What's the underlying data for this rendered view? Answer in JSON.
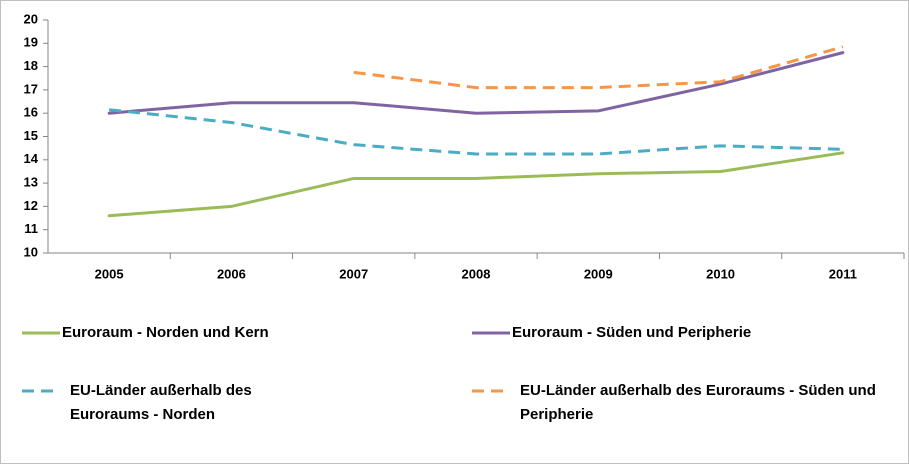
{
  "chart_data": {
    "type": "line",
    "categories": [
      "2005",
      "2006",
      "2007",
      "2008",
      "2009",
      "2010",
      "2011"
    ],
    "series": [
      {
        "name": "Euroraum - Norden und Kern",
        "color": "#9bbb59",
        "dash": false,
        "values": [
          11.6,
          12.0,
          13.2,
          13.2,
          13.4,
          13.5,
          14.3
        ]
      },
      {
        "name": "Euroraum - Süden und Peripherie",
        "color": "#8064a2",
        "dash": false,
        "values": [
          16.0,
          16.45,
          16.45,
          16.0,
          16.1,
          17.25,
          18.6
        ]
      },
      {
        "name": "EU-Länder außerhalb des Euroraums - Norden",
        "color": "#4bacc6",
        "dash": true,
        "values": [
          16.15,
          15.6,
          14.65,
          14.25,
          14.25,
          14.6,
          14.45
        ]
      },
      {
        "name": "EU-Länder außerhalb des Euroraums - Süden und Peripherie",
        "color": "#f79646",
        "dash": true,
        "values": [
          null,
          null,
          17.75,
          17.1,
          17.1,
          17.35,
          18.85
        ]
      }
    ],
    "ylim": [
      10,
      20
    ],
    "yticks": [
      10,
      11,
      12,
      13,
      14,
      15,
      16,
      17,
      18,
      19,
      20
    ],
    "grid": false
  }
}
